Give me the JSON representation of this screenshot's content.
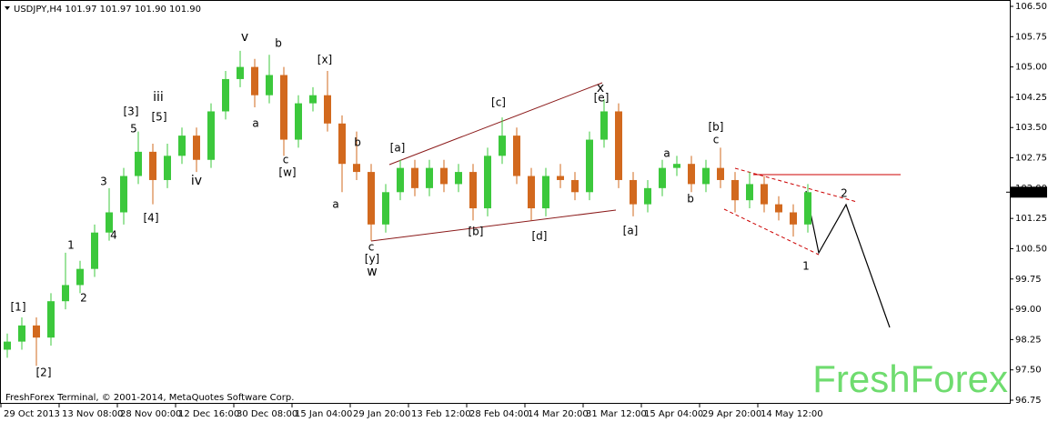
{
  "chart_data": {
    "type": "candlestick",
    "title": "USDJPY,H4  101.97 101.97 101.90 101.90",
    "copyright": "FreshForex Terminal, © 2001-2014, MetaQuotes Software Corp.",
    "watermark": "FreshForex",
    "categories": [
      "29 Oct 2013",
      null,
      null,
      null,
      "13 Nov 08:00",
      null,
      null,
      null,
      "28 Nov 00:00",
      null,
      null,
      null,
      "12 Dec 16:00",
      null,
      null,
      null,
      "30 Dec 08:00",
      null,
      null,
      null,
      "15 Jan 04:00",
      null,
      null,
      null,
      "29 Jan 20:00",
      null,
      null,
      null,
      "13 Feb 12:00",
      null,
      null,
      null,
      "28 Feb 04:00",
      null,
      null,
      null,
      "14 Mar 20:00",
      null,
      null,
      null,
      "31 Mar 12:00",
      null,
      null,
      null,
      "15 Apr 04:00",
      null,
      null,
      null,
      "29 Apr 20:00",
      null,
      null,
      null,
      "14 May 12:00",
      null,
      null,
      null
    ],
    "open": [
      98.0,
      98.2,
      98.6,
      98.3,
      99.2,
      99.6,
      100.0,
      100.9,
      101.4,
      102.3,
      102.9,
      102.2,
      102.8,
      103.3,
      102.7,
      103.9,
      104.7,
      105.0,
      104.3,
      104.8,
      103.2,
      104.1,
      104.3,
      103.6,
      102.6,
      102.4,
      101.1,
      101.9,
      102.5,
      102.0,
      102.5,
      102.1,
      102.4,
      101.5,
      102.8,
      103.3,
      102.3,
      101.5,
      102.3,
      102.2,
      101.9,
      103.2,
      103.9,
      102.2,
      101.6,
      102.0,
      102.5,
      102.6,
      102.1,
      102.5,
      102.2,
      101.7,
      102.1,
      101.6,
      101.4,
      101.1
    ],
    "high": [
      98.4,
      98.8,
      98.8,
      99.4,
      100.4,
      100.2,
      101.1,
      102.0,
      102.5,
      103.4,
      103.1,
      103.1,
      103.5,
      103.5,
      104.1,
      104.9,
      105.4,
      105.2,
      105.3,
      105.0,
      104.3,
      104.5,
      104.9,
      103.8,
      103.4,
      102.6,
      102.1,
      102.7,
      102.7,
      102.7,
      102.7,
      102.6,
      102.6,
      103.0,
      103.75,
      103.5,
      102.5,
      102.5,
      102.6,
      102.4,
      103.4,
      104.2,
      104.1,
      102.4,
      102.2,
      102.7,
      102.8,
      102.8,
      102.7,
      103.0,
      102.4,
      102.4,
      102.3,
      101.8,
      101.6,
      102.1
    ],
    "low": [
      97.8,
      98.0,
      97.6,
      98.1,
      99.0,
      99.4,
      99.8,
      100.7,
      101.1,
      102.1,
      101.6,
      102.0,
      102.6,
      102.4,
      102.5,
      103.7,
      104.5,
      104.0,
      104.1,
      102.8,
      103.0,
      103.9,
      103.4,
      101.9,
      102.2,
      100.7,
      100.9,
      101.7,
      101.8,
      101.8,
      101.9,
      101.9,
      101.2,
      101.3,
      102.6,
      102.1,
      101.2,
      101.3,
      102.0,
      101.7,
      101.7,
      103.0,
      102.0,
      101.3,
      101.4,
      101.8,
      102.3,
      101.9,
      101.9,
      102.0,
      101.4,
      101.5,
      101.4,
      101.2,
      100.8,
      100.9
    ],
    "close": [
      98.2,
      98.6,
      98.3,
      99.2,
      99.6,
      100.0,
      100.9,
      101.4,
      102.3,
      102.9,
      102.2,
      102.8,
      103.3,
      102.7,
      103.9,
      104.7,
      105.0,
      104.3,
      104.8,
      103.2,
      104.1,
      104.3,
      103.6,
      102.6,
      102.4,
      101.1,
      101.9,
      102.5,
      102.0,
      102.5,
      102.1,
      102.4,
      101.5,
      102.8,
      103.3,
      102.3,
      101.5,
      102.3,
      102.2,
      101.9,
      103.2,
      103.9,
      102.2,
      101.6,
      102.0,
      102.5,
      102.6,
      102.1,
      102.5,
      102.2,
      101.7,
      102.1,
      101.6,
      101.4,
      101.1,
      101.9
    ],
    "up_color": "#3cc83c",
    "down_color": "#d2691e",
    "last_price": {
      "value": 101.9,
      "label": "101.90"
    },
    "ylim": [
      96.75,
      106.5
    ],
    "yticks": [
      {
        "value": 96.75,
        "label": "96.75"
      },
      {
        "value": 97.5,
        "label": "97.50"
      },
      {
        "value": 98.25,
        "label": "98.25"
      },
      {
        "value": 99.0,
        "label": "99.00"
      },
      {
        "value": 99.75,
        "label": "99.75"
      },
      {
        "value": 100.5,
        "label": "100.50"
      },
      {
        "value": 101.25,
        "label": "101.25"
      },
      {
        "value": 102.0,
        "label": "102.00"
      },
      {
        "value": 102.75,
        "label": "102.75"
      },
      {
        "value": 103.5,
        "label": "103.50"
      },
      {
        "value": 104.25,
        "label": "104.25"
      },
      {
        "value": 105.0,
        "label": "105.00"
      },
      {
        "value": 105.75,
        "label": "105.75"
      },
      {
        "value": 106.5,
        "label": "106.50"
      }
    ],
    "annotations": [
      {
        "text": "[1]",
        "color": "#55cc33"
      },
      {
        "text": "[2]",
        "color": "#55cc33"
      },
      {
        "text": "1",
        "color": "#1a1a99"
      },
      {
        "text": "2",
        "color": "#1a1a99"
      },
      {
        "text": "3",
        "color": "#1a1a99"
      },
      {
        "text": "4",
        "color": "#1a1a99"
      },
      {
        "text": "5",
        "color": "#1a1a99"
      },
      {
        "text": "[3]",
        "color": "#55cc33"
      },
      {
        "text": "[4]",
        "color": "#55cc33"
      },
      {
        "text": "[5]",
        "color": "#55cc33"
      },
      {
        "text": "iii",
        "color": "#cc0000"
      },
      {
        "text": "iv",
        "color": "#cc0000"
      },
      {
        "text": "v",
        "color": "#cc0000"
      },
      {
        "text": "b",
        "color": "#1a1a99"
      },
      {
        "text": "a",
        "color": "#1a1a99"
      },
      {
        "text": "c",
        "color": "#1a1a99"
      },
      {
        "text": "[w]",
        "color": "#55cc33"
      },
      {
        "text": "[x]",
        "color": "#55cc33"
      },
      {
        "text": "a",
        "color": "#1a1a99"
      },
      {
        "text": "b",
        "color": "#1a1a99"
      },
      {
        "text": "c",
        "color": "#1a1a99"
      },
      {
        "text": "[y]",
        "color": "#55cc33"
      },
      {
        "text": "w",
        "color": "#cc0000"
      },
      {
        "text": "[a]",
        "color": "#55cc33"
      },
      {
        "text": "[b]",
        "color": "#55cc33"
      },
      {
        "text": "[c]",
        "color": "#55cc33"
      },
      {
        "text": "[d]",
        "color": "#55cc33"
      },
      {
        "text": "[e]",
        "color": "#55cc33"
      },
      {
        "text": "x",
        "color": "#cc0000"
      },
      {
        "text": "[a]",
        "color": "#55cc33"
      },
      {
        "text": "a",
        "color": "#1a1a99"
      },
      {
        "text": "b",
        "color": "#1a1a99"
      },
      {
        "text": "[b]",
        "color": "#55cc33"
      },
      {
        "text": "c",
        "color": "#1a1a99"
      },
      {
        "text": "1",
        "color": "#1a1a99"
      },
      {
        "text": "2",
        "color": "#1a1a99"
      }
    ]
  }
}
